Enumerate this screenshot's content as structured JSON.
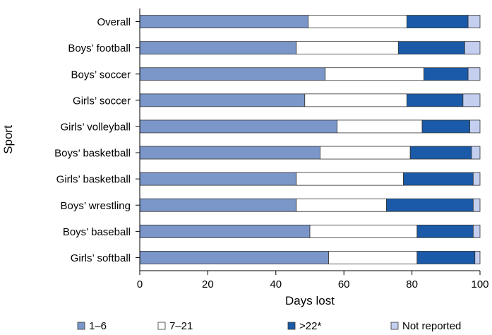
{
  "chart_data": {
    "type": "bar",
    "orientation": "horizontal",
    "stacked": true,
    "xlabel": "Days lost",
    "ylabel": "Sport",
    "xlim": [
      0,
      100
    ],
    "xticks": [
      0,
      20,
      40,
      60,
      80,
      100
    ],
    "grid": false,
    "legend_position": "bottom",
    "categories": [
      "Overall",
      "Boys’ football",
      "Boys’ soccer",
      "Girls’ soccer",
      "Girls’ volleyball",
      "Boys’ basketball",
      "Girls’ basketball",
      "Boys’ wrestling",
      "Boys’ baseball",
      "Girls’ softball"
    ],
    "series": [
      {
        "name": "1–6",
        "color": "#7b96c8",
        "values": [
          49.5,
          46,
          54.5,
          48.5,
          58,
          53,
          46,
          46,
          50,
          55.5
        ]
      },
      {
        "name": "7–21",
        "color": "#ffffff",
        "values": [
          29,
          30,
          29,
          30,
          25,
          26.5,
          31.5,
          26.5,
          31.5,
          26
        ]
      },
      {
        "name": ">22*",
        "color": "#1a5aa8",
        "values": [
          18,
          19.5,
          13,
          16.5,
          14,
          18,
          20.5,
          25.5,
          16.5,
          17
        ]
      },
      {
        "name": "Not reported",
        "color": "#c4cff0",
        "values": [
          3.5,
          4.5,
          3.5,
          5,
          3,
          2.5,
          2,
          2,
          2,
          1.5
        ]
      }
    ]
  }
}
